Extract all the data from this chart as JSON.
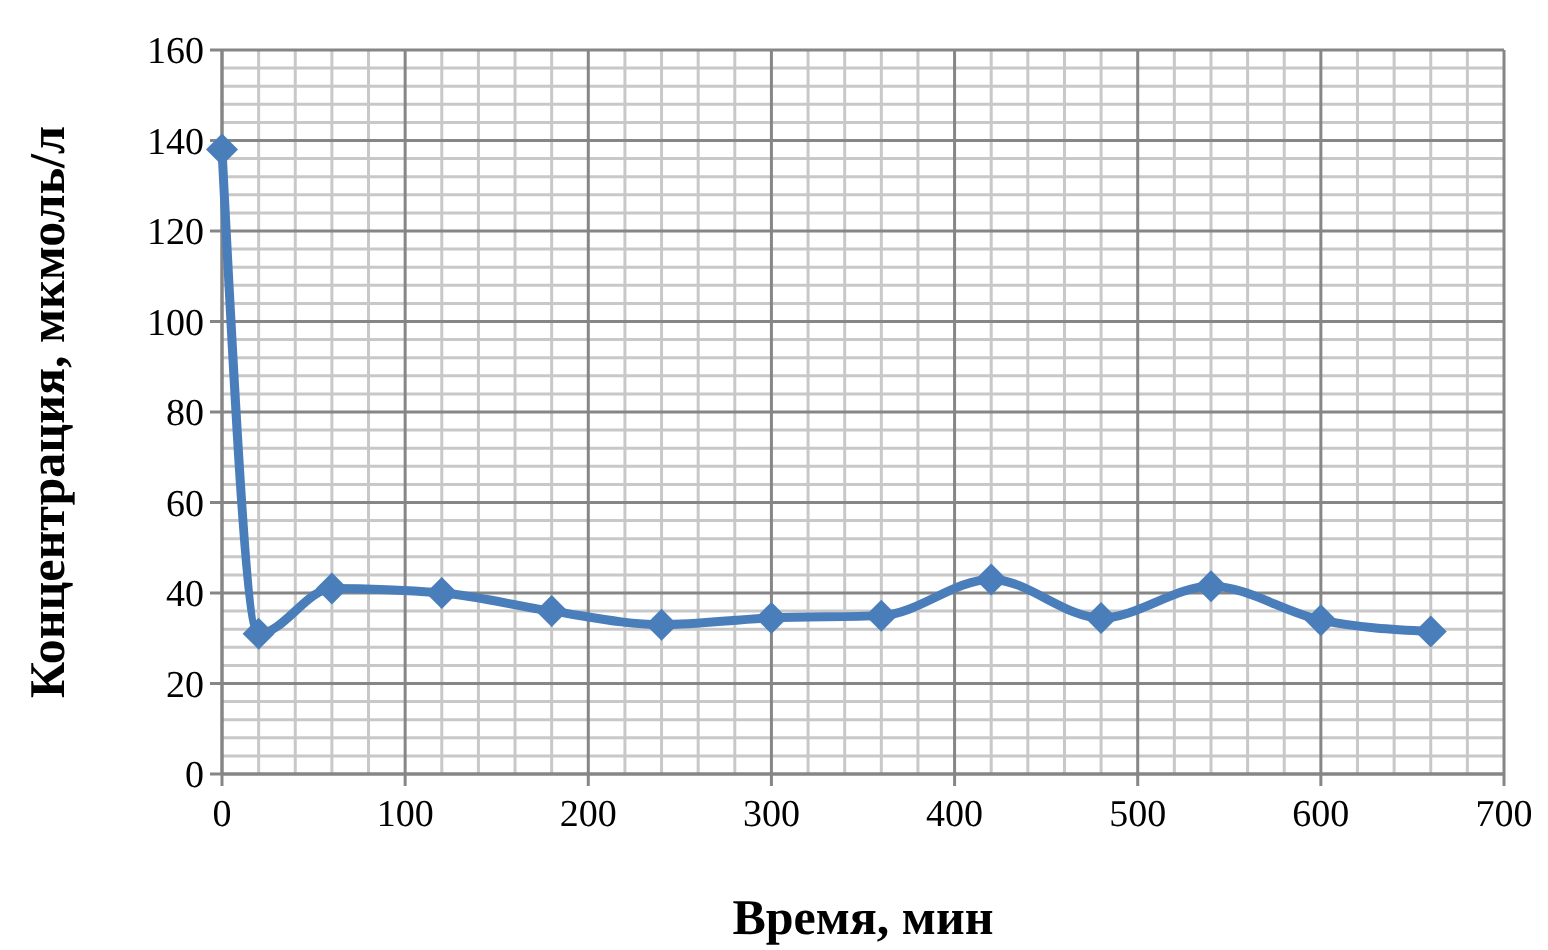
{
  "chart_data": {
    "type": "line",
    "xlabel": "Время, мин",
    "ylabel": "Концентрация, мкмоль/л",
    "x": [
      0,
      20,
      60,
      120,
      180,
      240,
      300,
      360,
      420,
      480,
      540,
      600,
      660
    ],
    "series": [
      {
        "color": "#4a7ebb",
        "values": [
          138,
          31,
          41,
          40,
          36,
          33,
          34.5,
          35,
          43,
          34.5,
          41.5,
          34,
          31.5
        ]
      }
    ],
    "xlim": [
      0,
      700
    ],
    "xticks": [
      0,
      100,
      200,
      300,
      400,
      500,
      600,
      700
    ],
    "ylim": [
      0,
      160
    ],
    "yticks": [
      0,
      20,
      40,
      60,
      80,
      100,
      120,
      140,
      160
    ],
    "grid": true,
    "marker": "diamond",
    "line_style": "solid"
  }
}
